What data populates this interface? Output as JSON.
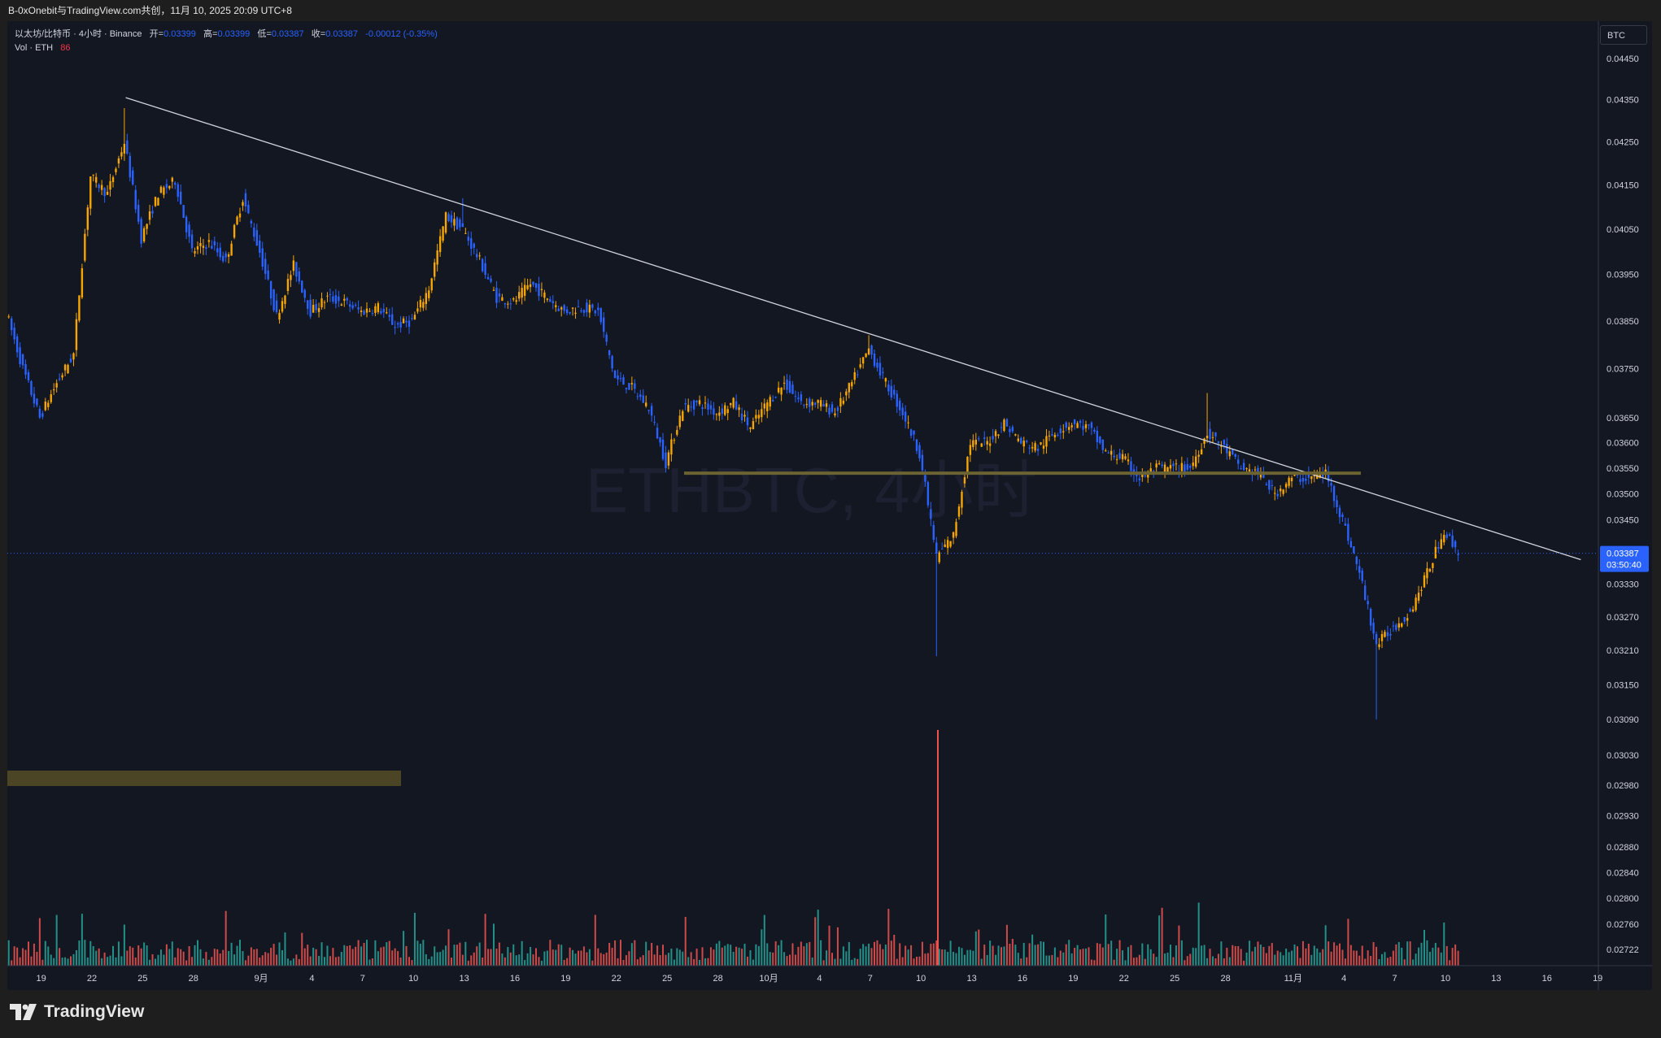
{
  "header": {
    "title": "B-0xOnebit与TradingView.com共创，11月 10, 2025 20:09 UTC+8"
  },
  "legend": {
    "symbol": "以太坊/比特币 · 4小时 · Binance",
    "open_label": "开=",
    "open_value": "0.03399",
    "high_label": "高=",
    "high_value": "0.03399",
    "low_label": "低=",
    "low_value": "0.03387",
    "close_label": "收=",
    "close_value": "0.03387",
    "change": "-0.00012 (-0.35%)",
    "vol_label": "Vol · ETH",
    "vol_value": "86"
  },
  "currency_button": "BTC",
  "watermark": "ETHBTC, 4小时",
  "price_tag": {
    "value": "0.03387",
    "countdown": "03:50:40"
  },
  "footer": {
    "brand": "TradingView"
  },
  "colors": {
    "background": "#131722",
    "up": "#f7a600",
    "down": "#2962ff",
    "volume_up": "#26a69a",
    "volume_down": "#ef5350",
    "trendline": "#d1d4dc",
    "support_line": "#6b6331",
    "zone": "#4b4526"
  },
  "chart_data": {
    "type": "candlestick",
    "title": "",
    "xlabel": "",
    "ylabel": "",
    "ylim": [
      0.027,
      0.0447
    ],
    "y_scale": "log",
    "y_ticks": [
      "0.04450",
      "0.04350",
      "0.04250",
      "0.04150",
      "0.04050",
      "0.03950",
      "0.03850",
      "0.03750",
      "0.03650",
      "0.03600",
      "0.03550",
      "0.03500",
      "0.03450",
      "0.03330",
      "0.03270",
      "0.03210",
      "0.03150",
      "0.03090",
      "0.03030",
      "0.02980",
      "0.02930",
      "0.02880",
      "0.02840",
      "0.02800",
      "0.02760",
      "0.02722"
    ],
    "x_ticks": [
      "19",
      "22",
      "25",
      "28",
      "9月",
      "4",
      "7",
      "10",
      "13",
      "16",
      "19",
      "22",
      "25",
      "28",
      "10月",
      "4",
      "7",
      "10",
      "13",
      "16",
      "19",
      "22",
      "25",
      "28",
      "11月",
      "4",
      "7",
      "10",
      "13",
      "16",
      "19"
    ],
    "last_price": 0.03387,
    "trendline": {
      "from": [
        "2025-08-24",
        0.04355
      ],
      "to": [
        "2025-11-18",
        0.03375
      ]
    },
    "support_level": {
      "value": 0.0354,
      "from": "2025-09-26",
      "to": "2025-11-05"
    },
    "price_path": [
      [
        "2025-08-17",
        0.0387
      ],
      [
        "2025-08-18",
        0.0375
      ],
      [
        "2025-08-19",
        0.0365
      ],
      [
        "2025-08-20",
        0.0372
      ],
      [
        "2025-08-21",
        0.0378
      ],
      [
        "2025-08-22",
        0.0417
      ],
      [
        "2025-08-23",
        0.0413
      ],
      [
        "2025-08-24",
        0.0425
      ],
      [
        "2025-08-25",
        0.0403
      ],
      [
        "2025-08-26",
        0.0413
      ],
      [
        "2025-08-27",
        0.0416
      ],
      [
        "2025-08-28",
        0.04
      ],
      [
        "2025-08-29",
        0.0402
      ],
      [
        "2025-08-30",
        0.0398
      ],
      [
        "2025-08-31",
        0.0412
      ],
      [
        "2025-09-01",
        0.04
      ],
      [
        "2025-09-02",
        0.0386
      ],
      [
        "2025-09-03",
        0.0397
      ],
      [
        "2025-09-04",
        0.0387
      ],
      [
        "2025-09-05",
        0.039
      ],
      [
        "2025-09-06",
        0.0389
      ],
      [
        "2025-09-07",
        0.0387
      ],
      [
        "2025-09-08",
        0.0388
      ],
      [
        "2025-09-09",
        0.0384
      ],
      [
        "2025-09-10",
        0.0385
      ],
      [
        "2025-09-11",
        0.0392
      ],
      [
        "2025-09-12",
        0.0408
      ],
      [
        "2025-09-13",
        0.0405
      ],
      [
        "2025-09-14",
        0.0398
      ],
      [
        "2025-09-15",
        0.039
      ],
      [
        "2025-09-16",
        0.0389
      ],
      [
        "2025-09-17",
        0.0393
      ],
      [
        "2025-09-18",
        0.039
      ],
      [
        "2025-09-19",
        0.0387
      ],
      [
        "2025-09-20",
        0.0388
      ],
      [
        "2025-09-21",
        0.0387
      ],
      [
        "2025-09-22",
        0.0373
      ],
      [
        "2025-09-23",
        0.0371
      ],
      [
        "2025-09-24",
        0.0367
      ],
      [
        "2025-09-25",
        0.0356
      ],
      [
        "2025-09-26",
        0.0367
      ],
      [
        "2025-09-27",
        0.0368
      ],
      [
        "2025-09-28",
        0.0366
      ],
      [
        "2025-09-29",
        0.0368
      ],
      [
        "2025-09-30",
        0.0363
      ],
      [
        "2025-10-01",
        0.0368
      ],
      [
        "2025-10-02",
        0.0372
      ],
      [
        "2025-10-03",
        0.0368
      ],
      [
        "2025-10-04",
        0.0368
      ],
      [
        "2025-10-05",
        0.0366
      ],
      [
        "2025-10-06",
        0.0372
      ],
      [
        "2025-10-07",
        0.0379
      ],
      [
        "2025-10-08",
        0.0372
      ],
      [
        "2025-10-09",
        0.0366
      ],
      [
        "2025-10-10",
        0.0358
      ],
      [
        "2025-10-11",
        0.0338
      ],
      [
        "2025-10-12",
        0.0342
      ],
      [
        "2025-10-13",
        0.036
      ],
      [
        "2025-10-14",
        0.036
      ],
      [
        "2025-10-15",
        0.0364
      ],
      [
        "2025-10-16",
        0.036
      ],
      [
        "2025-10-17",
        0.0359
      ],
      [
        "2025-10-18",
        0.0362
      ],
      [
        "2025-10-19",
        0.0364
      ],
      [
        "2025-10-20",
        0.0363
      ],
      [
        "2025-10-21",
        0.0358
      ],
      [
        "2025-10-22",
        0.0357
      ],
      [
        "2025-10-23",
        0.0353
      ],
      [
        "2025-10-24",
        0.0355
      ],
      [
        "2025-10-25",
        0.0355
      ],
      [
        "2025-10-26",
        0.0355
      ],
      [
        "2025-10-27",
        0.0362
      ],
      [
        "2025-10-28",
        0.0359
      ],
      [
        "2025-10-29",
        0.0355
      ],
      [
        "2025-10-30",
        0.0354
      ],
      [
        "2025-10-31",
        0.035
      ],
      [
        "2025-11-01",
        0.0353
      ],
      [
        "2025-11-02",
        0.0353
      ],
      [
        "2025-11-03",
        0.0354
      ],
      [
        "2025-11-04",
        0.0345
      ],
      [
        "2025-11-05",
        0.0335
      ],
      [
        "2025-11-06",
        0.0322
      ],
      [
        "2025-11-07",
        0.0325
      ],
      [
        "2025-11-08",
        0.0328
      ],
      [
        "2025-11-09",
        0.0335
      ],
      [
        "2025-11-10",
        0.0343
      ],
      [
        "2025-11-10T20:00",
        0.03387
      ]
    ]
  }
}
